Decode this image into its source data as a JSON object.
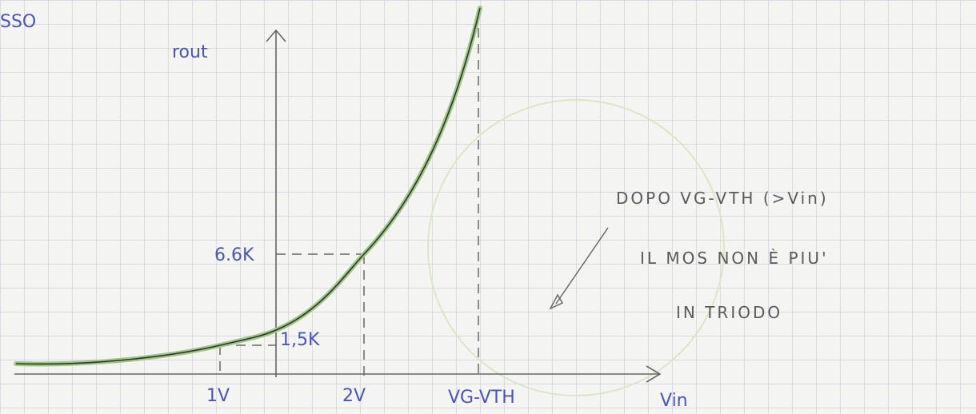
{
  "corner_text": "SSO",
  "axes": {
    "y_label": "rout",
    "x_label": "Vin"
  },
  "y_marks": [
    "6.6K",
    "1,5K"
  ],
  "x_marks": [
    "1V",
    "2V",
    "VG-VTH"
  ],
  "note": {
    "lines": [
      "DOPO VG-VTH (>Vin)",
      "IL MOS NON È PIU'",
      "IN TRIODO"
    ]
  }
}
